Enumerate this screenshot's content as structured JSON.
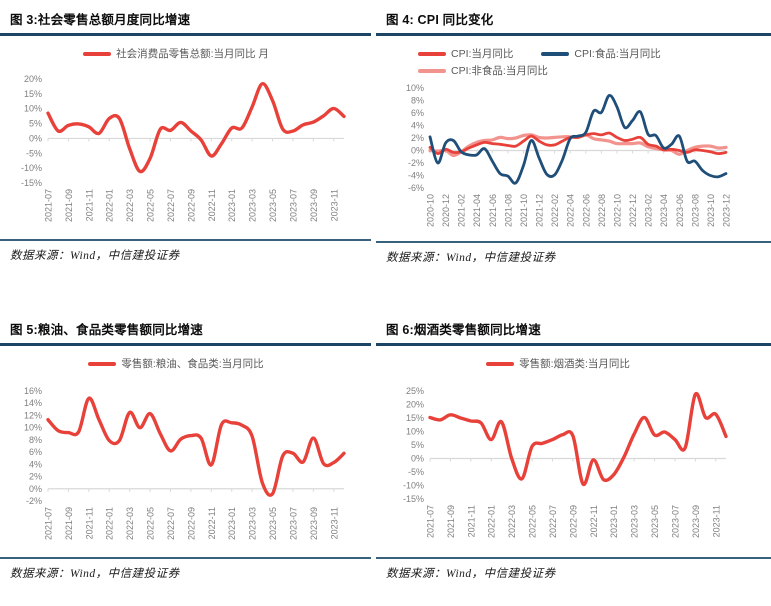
{
  "colors": {
    "red": "#e8413a",
    "dark_blue": "#1f4e79",
    "pink": "#f2938e",
    "title_rule": "#1d4566",
    "source_rule": "#38627b",
    "axis_text": "#7f7f7f",
    "legend_text": "#595959",
    "axis_line": "#d9d9d9"
  },
  "figures": [
    {
      "title": "图 3:社会零售总额月度同比增速",
      "source_note": "数据来源：Wind，中信建投证券"
    },
    {
      "title": "图 4: CPI 同比变化",
      "source_note": "数据来源：Wind，中信建投证券"
    },
    {
      "title": "图 5:粮油、食品类零售额同比增速",
      "source_note": "数据来源：Wind，中信建投证券"
    },
    {
      "title": "图 6:烟酒类零售额同比增速",
      "source_note": "数据来源：Wind，中信建投证券"
    }
  ],
  "chart_data": [
    {
      "type": "line",
      "title": "社会零售总额月度同比增速",
      "categories": [
        "2021-07",
        "2021-08",
        "2021-09",
        "2021-10",
        "2021-11",
        "2021-12",
        "2022-01",
        "2022-02",
        "2022-03",
        "2022-04",
        "2022-05",
        "2022-06",
        "2022-07",
        "2022-08",
        "2022-09",
        "2022-10",
        "2022-11",
        "2022-12",
        "2023-01",
        "2023-02",
        "2023-03",
        "2023-04",
        "2023-05",
        "2023-06",
        "2023-07",
        "2023-08",
        "2023-09",
        "2023-10",
        "2023-11",
        "2023-12"
      ],
      "series": [
        {
          "name": "社会消费品零售总额:当月同比 月",
          "color": "#e8413a",
          "values": [
            8.5,
            2.5,
            4.4,
            4.9,
            3.9,
            1.7,
            6.7,
            6.7,
            -3.5,
            -11.1,
            -6.7,
            3.1,
            2.7,
            5.4,
            2.5,
            -0.5,
            -5.9,
            -1.8,
            3.5,
            3.5,
            10.6,
            18.4,
            12.7,
            3.1,
            2.5,
            4.6,
            5.5,
            7.6,
            10.1,
            7.4
          ]
        }
      ],
      "ylim": [
        -15,
        20
      ],
      "yticks": [
        20,
        15,
        10,
        5,
        0,
        -5,
        -10,
        -15
      ],
      "ytick_suffix": "%",
      "xtick_every": 2,
      "grid": "zero-axis-only",
      "legend_position": "top-center"
    },
    {
      "type": "line",
      "title": "CPI 同比变化",
      "categories": [
        "2020-10",
        "2020-11",
        "2020-12",
        "2021-01",
        "2021-02",
        "2021-03",
        "2021-04",
        "2021-05",
        "2021-06",
        "2021-07",
        "2021-08",
        "2021-09",
        "2021-10",
        "2021-11",
        "2021-12",
        "2022-01",
        "2022-02",
        "2022-03",
        "2022-04",
        "2022-05",
        "2022-06",
        "2022-07",
        "2022-08",
        "2022-09",
        "2022-10",
        "2022-11",
        "2022-12",
        "2023-01",
        "2023-02",
        "2023-03",
        "2023-04",
        "2023-05",
        "2023-06",
        "2023-07",
        "2023-08",
        "2023-09",
        "2023-10",
        "2023-11",
        "2023-12"
      ],
      "series": [
        {
          "name": "CPI:当月同比",
          "color": "#e8413a",
          "values": [
            0.5,
            -0.5,
            0.2,
            -0.3,
            -0.2,
            0.4,
            0.9,
            1.3,
            1.1,
            1.0,
            0.8,
            0.7,
            1.5,
            2.3,
            1.5,
            0.9,
            0.9,
            1.5,
            2.1,
            2.1,
            2.5,
            2.7,
            2.5,
            2.8,
            2.1,
            1.6,
            1.8,
            2.1,
            1.0,
            0.7,
            0.1,
            0.2,
            0.0,
            -0.3,
            0.1,
            0.0,
            -0.2,
            -0.5,
            -0.3
          ]
        },
        {
          "name": "CPI:食品:当月同比",
          "color": "#1f4e79",
          "values": [
            2.2,
            -2.0,
            1.2,
            1.6,
            -0.2,
            -0.7,
            -0.7,
            0.3,
            -1.7,
            -3.7,
            -4.1,
            -5.2,
            -2.4,
            1.6,
            -1.2,
            -3.8,
            -3.9,
            -1.5,
            1.9,
            2.3,
            2.9,
            6.3,
            6.1,
            8.8,
            7.0,
            3.7,
            4.8,
            6.2,
            2.6,
            2.4,
            0.4,
            1.0,
            2.3,
            -1.7,
            -1.7,
            -3.2,
            -4.0,
            -4.2,
            -3.7
          ]
        },
        {
          "name": "CPI:非食品:当月同比",
          "color": "#f2938e",
          "values": [
            0.0,
            -0.1,
            0.0,
            -0.8,
            -0.2,
            0.7,
            1.3,
            1.6,
            1.7,
            2.1,
            1.9,
            2.0,
            2.4,
            2.5,
            2.1,
            2.0,
            2.1,
            2.2,
            2.2,
            2.1,
            2.5,
            1.9,
            1.7,
            1.5,
            1.1,
            1.1,
            1.1,
            1.2,
            0.6,
            0.3,
            0.1,
            0.0,
            -0.6,
            0.0,
            0.5,
            0.7,
            0.7,
            0.4,
            0.5
          ]
        }
      ],
      "ylim": [
        -6,
        10
      ],
      "yticks": [
        10,
        8,
        6,
        4,
        2,
        0,
        -2,
        -4,
        -6
      ],
      "ytick_suffix": "%",
      "xtick_every": 2,
      "grid": "zero-axis-only",
      "legend_position": "top-left"
    },
    {
      "type": "line",
      "title": "粮油、食品类零售额同比增速",
      "categories": [
        "2021-07",
        "2021-08",
        "2021-09",
        "2021-10",
        "2021-11",
        "2021-12",
        "2022-01",
        "2022-02",
        "2022-03",
        "2022-04",
        "2022-05",
        "2022-06",
        "2022-07",
        "2022-08",
        "2022-09",
        "2022-10",
        "2022-11",
        "2022-12",
        "2023-01",
        "2023-02",
        "2023-03",
        "2023-04",
        "2023-05",
        "2023-06",
        "2023-07",
        "2023-08",
        "2023-09",
        "2023-10",
        "2023-11",
        "2023-12"
      ],
      "series": [
        {
          "name": "零售额:粮油、食品类:当月同比",
          "color": "#e8413a",
          "values": [
            11.3,
            9.5,
            9.2,
            9.3,
            14.8,
            11.3,
            7.9,
            7.9,
            12.5,
            10.0,
            12.3,
            9.0,
            6.2,
            8.1,
            8.7,
            8.3,
            3.9,
            10.5,
            10.8,
            10.4,
            8.6,
            1.0,
            -0.8,
            5.4,
            5.8,
            4.4,
            8.3,
            4.1,
            4.3,
            5.8
          ]
        }
      ],
      "ylim": [
        -2,
        16
      ],
      "yticks": [
        16,
        14,
        12,
        10,
        8,
        6,
        4,
        2,
        0,
        -2
      ],
      "ytick_suffix": "%",
      "xtick_every": 2,
      "grid": "zero-axis-only",
      "legend_position": "top-center"
    },
    {
      "type": "line",
      "title": "烟酒类零售额同比增速",
      "categories": [
        "2021-07",
        "2021-08",
        "2021-09",
        "2021-10",
        "2021-11",
        "2021-12",
        "2022-01",
        "2022-02",
        "2022-03",
        "2022-04",
        "2022-05",
        "2022-06",
        "2022-07",
        "2022-08",
        "2022-09",
        "2022-10",
        "2022-11",
        "2022-12",
        "2023-01",
        "2023-02",
        "2023-03",
        "2023-04",
        "2023-05",
        "2023-06",
        "2023-07",
        "2023-08",
        "2023-09",
        "2023-10",
        "2023-11",
        "2023-12"
      ],
      "series": [
        {
          "name": "零售额:烟酒类:当月同比",
          "color": "#e8413a",
          "values": [
            15.2,
            14.3,
            16.2,
            15.0,
            13.9,
            13.2,
            7.0,
            13.6,
            0.0,
            -7.5,
            4.5,
            5.6,
            7.0,
            8.8,
            8.4,
            -9.5,
            -0.5,
            -7.8,
            -6.0,
            0.5,
            9.0,
            15.2,
            8.7,
            9.8,
            7.0,
            4.0,
            23.8,
            15.2,
            16.4,
            8.2
          ]
        }
      ],
      "ylim": [
        -15,
        25
      ],
      "yticks": [
        25,
        20,
        15,
        10,
        5,
        0,
        -5,
        -10,
        -15
      ],
      "ytick_suffix": "%",
      "xtick_every": 2,
      "grid": "zero-axis-only",
      "legend_position": "top-center"
    }
  ]
}
